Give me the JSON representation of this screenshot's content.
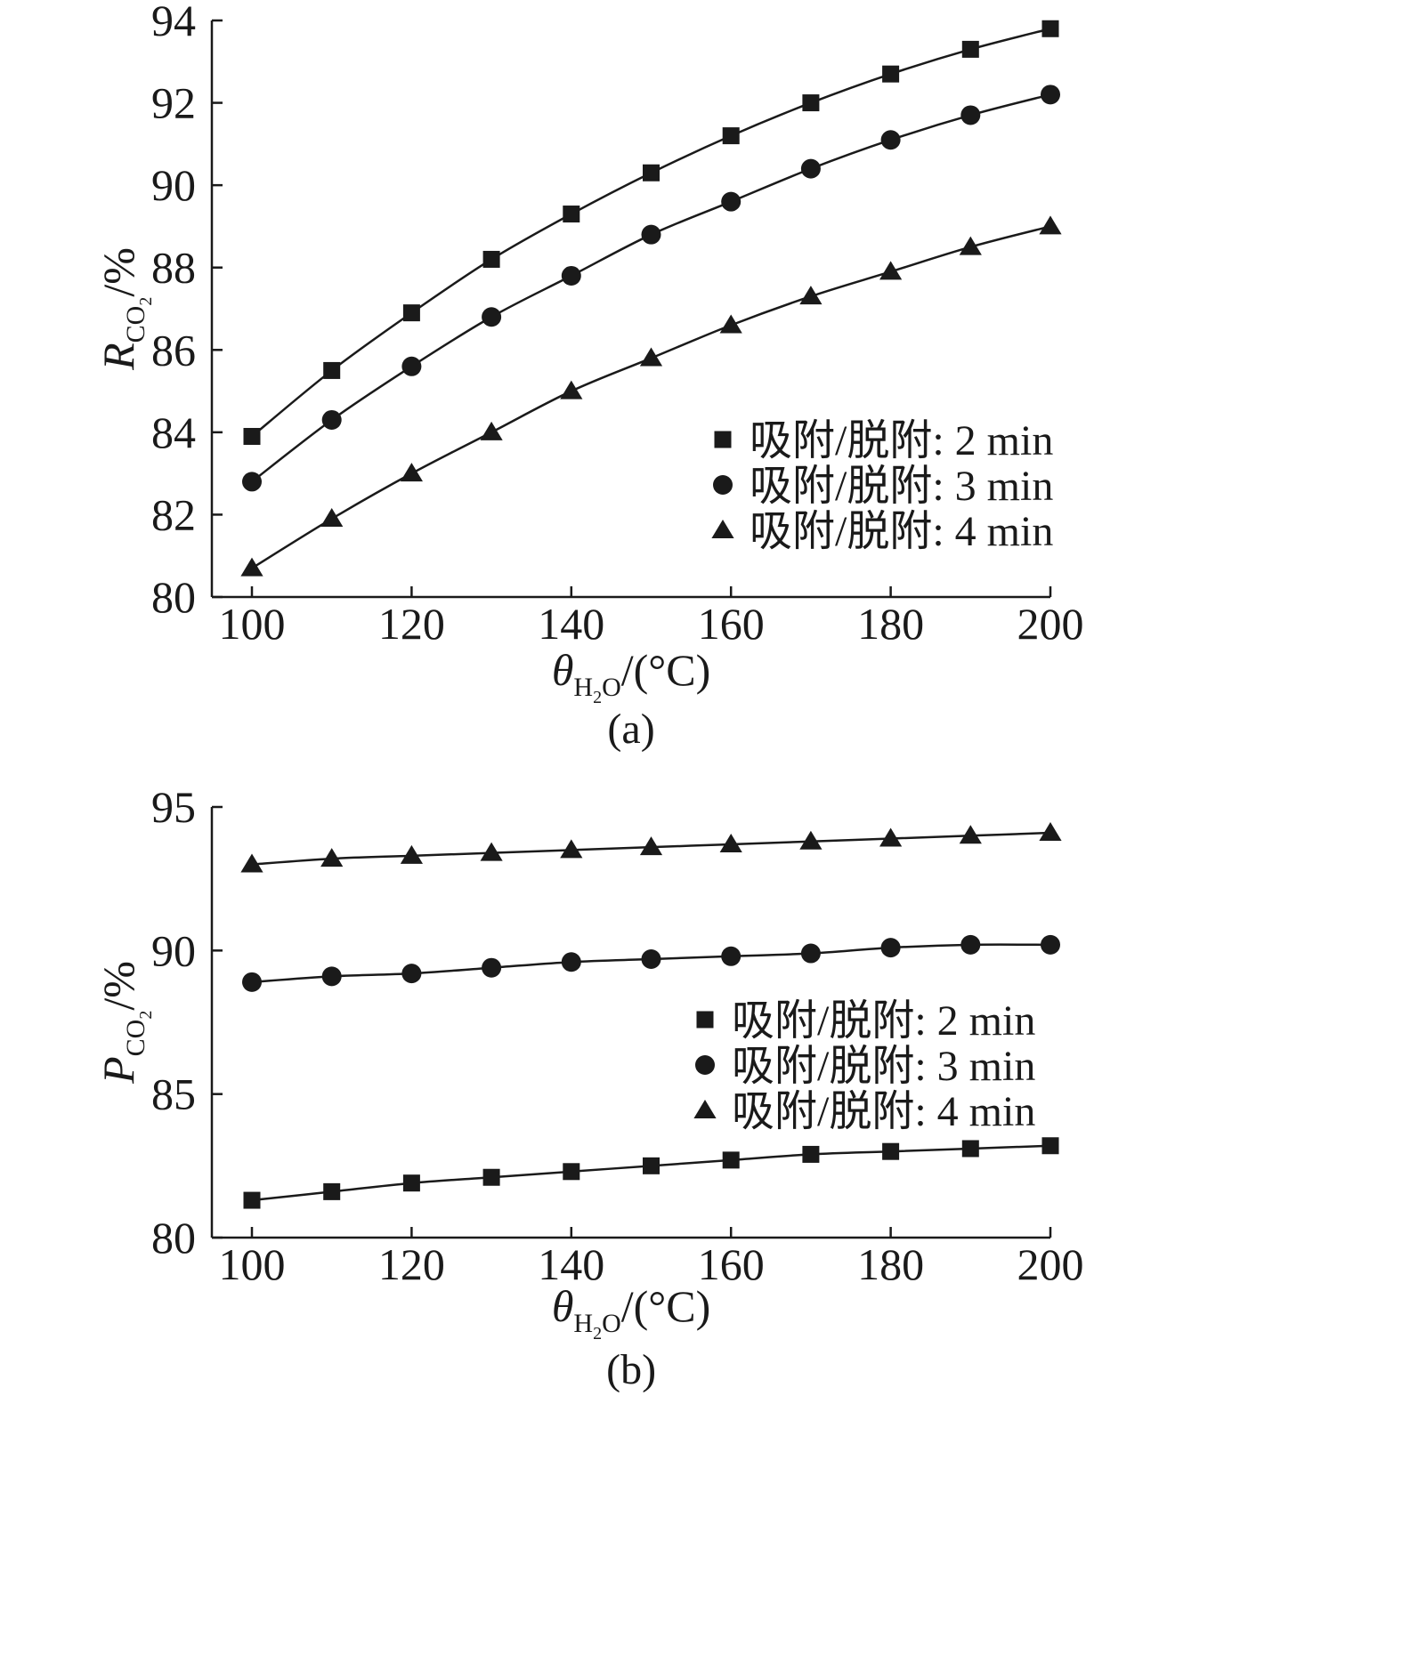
{
  "chart_data": [
    {
      "type": "line",
      "panel_label": "(a)",
      "ylabel": {
        "symbol": "R",
        "sub_main": "CO",
        "sub_sub": "2",
        "unit": "/%"
      },
      "xlabel": {
        "symbol": "θ",
        "sub_main": "H",
        "sub_sub": "2",
        "sub_tail": "O",
        "unit": "/(°C)"
      },
      "xlim": [
        95,
        200
      ],
      "ylim": [
        80,
        94
      ],
      "xticks": [
        "100",
        "120",
        "140",
        "160",
        "180",
        "200"
      ],
      "yticks": [
        "80",
        "82",
        "84",
        "86",
        "88",
        "90",
        "92",
        "94"
      ],
      "x": [
        100,
        110,
        120,
        130,
        140,
        150,
        160,
        170,
        180,
        190,
        200
      ],
      "series": [
        {
          "name": "吸附/脱附: 2 min",
          "marker": "square",
          "values": [
            83.9,
            85.5,
            86.9,
            88.2,
            89.3,
            90.3,
            91.2,
            92.0,
            92.7,
            93.3,
            93.8
          ]
        },
        {
          "name": "吸附/脱附: 3 min",
          "marker": "circle",
          "values": [
            82.8,
            84.3,
            85.6,
            86.8,
            87.8,
            88.8,
            89.6,
            90.4,
            91.1,
            91.7,
            92.2
          ]
        },
        {
          "name": "吸附/脱附: 4 min",
          "marker": "triangle",
          "values": [
            80.7,
            81.9,
            83.0,
            84.0,
            85.0,
            85.8,
            86.6,
            87.3,
            87.9,
            88.5,
            89.0
          ]
        }
      ],
      "legend": {
        "position": "lower-right"
      },
      "grid": false
    },
    {
      "type": "line",
      "panel_label": "(b)",
      "ylabel": {
        "symbol": "P",
        "sub_main": "CO",
        "sub_sub": "2",
        "unit": "/%"
      },
      "xlabel": {
        "symbol": "θ",
        "sub_main": "H",
        "sub_sub": "2",
        "sub_tail": "O",
        "unit": "/(°C)"
      },
      "xlim": [
        95,
        200
      ],
      "ylim": [
        80,
        95
      ],
      "xticks": [
        "100",
        "120",
        "140",
        "160",
        "180",
        "200"
      ],
      "yticks": [
        "80",
        "85",
        "90",
        "95"
      ],
      "x": [
        100,
        110,
        120,
        130,
        140,
        150,
        160,
        170,
        180,
        190,
        200
      ],
      "series": [
        {
          "name": "吸附/脱附: 2 min",
          "marker": "square",
          "values": [
            81.3,
            81.6,
            81.9,
            82.1,
            82.3,
            82.5,
            82.7,
            82.9,
            83.0,
            83.1,
            83.2
          ]
        },
        {
          "name": "吸附/脱附: 3 min",
          "marker": "circle",
          "values": [
            88.9,
            89.1,
            89.2,
            89.4,
            89.6,
            89.7,
            89.8,
            89.9,
            90.1,
            90.2,
            90.2
          ]
        },
        {
          "name": "吸附/脱附: 4 min",
          "marker": "triangle",
          "values": [
            93.0,
            93.2,
            93.3,
            93.4,
            93.5,
            93.6,
            93.7,
            93.8,
            93.9,
            94.0,
            94.1
          ]
        }
      ],
      "legend": {
        "position": "center-right"
      },
      "grid": false
    }
  ],
  "colors": {
    "ink": "#1a1a1a",
    "background": "#ffffff"
  }
}
